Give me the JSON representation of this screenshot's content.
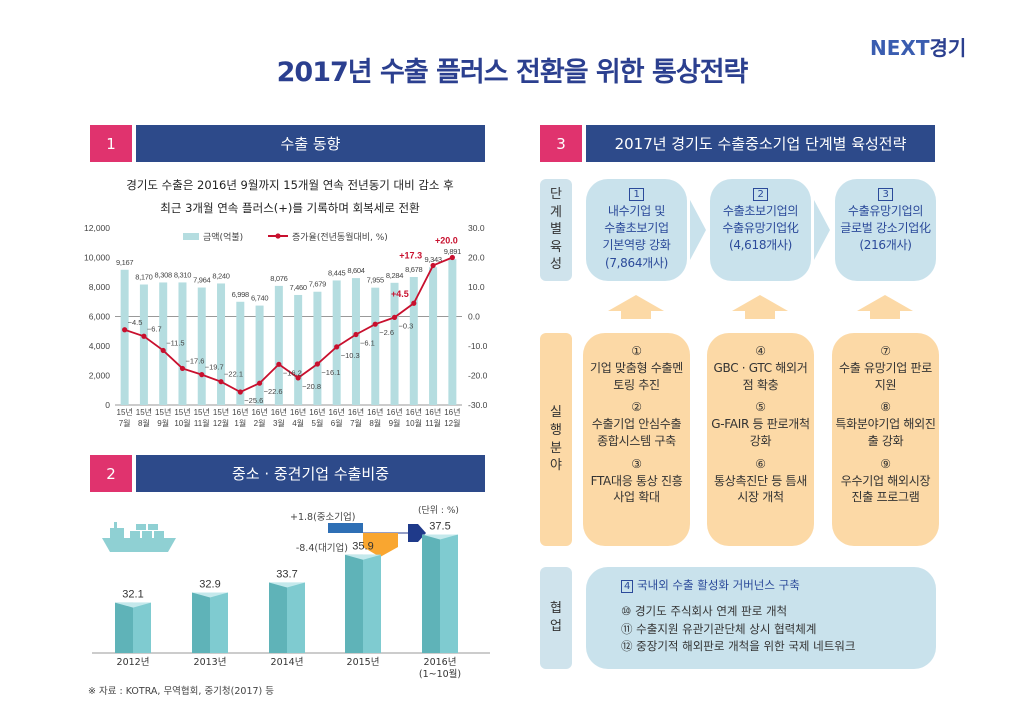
{
  "title": "2017년 수출 플러스 전환을 위한 통상전략",
  "logo": {
    "next": "NEXT",
    "gg": "경기"
  },
  "section1": {
    "num": "1",
    "title": "수출 동향",
    "sub1": "경기도 수출은 2016년 9월까지 15개월 연속 전년동기 대비 감소 후",
    "sub2": "최근 3개월 연속 플러스(+)를 기록하며 회복세로 전환"
  },
  "section2": {
    "num": "2",
    "title": "중소 · 중견기업 수출비중",
    "unit": "(단위 : %)",
    "sme_change": "+1.8(중소기업)",
    "large_change": "-8.4(대기업)",
    "source": "※ 자료 : KOTRA, 무역협회, 중기청(2017) 등"
  },
  "section3": {
    "num": "3",
    "title": "2017년 경기도 수출중소기업 단계별 육성전략",
    "label_stage": "단계별 육성",
    "label_exec": "실행분야",
    "label_coop": "협업",
    "stages": [
      {
        "num": "1",
        "lines": [
          "내수기업 및",
          "수출초보기업",
          "기본역량 강화",
          "(7,864개사)"
        ]
      },
      {
        "num": "2",
        "lines": [
          "수출초보기업의",
          "수출유망기업化",
          "(4,618개사)"
        ]
      },
      {
        "num": "3",
        "lines": [
          "수출유망기업의",
          "글로벌 강소기업化",
          "(216개사)"
        ]
      }
    ],
    "exec": [
      [
        {
          "n": "①",
          "t": "기업 맞춤형 수출멘토링 추진"
        },
        {
          "n": "②",
          "t": "수출기업 안심수출 종합시스템 구축"
        },
        {
          "n": "③",
          "t": "FTA대응 통상 진흥사업 확대"
        }
      ],
      [
        {
          "n": "④",
          "t": "GBC · GTC 해외거점 확충"
        },
        {
          "n": "⑤",
          "t": "G-FAIR 등 판로개척 강화"
        },
        {
          "n": "⑥",
          "t": "통상촉진단 등 틈새시장 개척"
        }
      ],
      [
        {
          "n": "⑦",
          "t": "수출 유망기업 판로지원"
        },
        {
          "n": "⑧",
          "t": "특화분야기업 해외진출 강화"
        },
        {
          "n": "⑨",
          "t": "우수기업 해외시장 진출 프로그램"
        }
      ]
    ],
    "coop": {
      "num": "4",
      "title": "국내외 수출 활성화 거버넌스 구축",
      "items": [
        "⑩ 경기도 주식회사 연계 판로 개척",
        "⑪ 수출지원 유관기관단체 상시 협력체계",
        "⑫ 중장기적 해외판로 개척을 위한 국제 네트워크"
      ]
    }
  },
  "chart_data": [
    {
      "type": "bar+line",
      "legend": [
        "금액(억불)",
        "증가율(전년동월대비, %)"
      ],
      "legend_position": "top",
      "categories": [
        "15년 7월",
        "15년 8월",
        "15년 9월",
        "15년 10월",
        "15년 11월",
        "15년 12월",
        "16년 1월",
        "16년 2월",
        "16년 3월",
        "16년 4월",
        "16년 5월",
        "16년 6월",
        "16년 7월",
        "16년 8월",
        "16년 9월",
        "16년 10월",
        "16년 11월",
        "16년 12월"
      ],
      "series": [
        {
          "name": "금액(억불)",
          "type": "bar",
          "axis": "left",
          "color": "#b5dde0",
          "values": [
            9167,
            8170,
            8308,
            8310,
            7964,
            8240,
            6998,
            6740,
            8076,
            7460,
            7679,
            8445,
            8604,
            7955,
            8284,
            8678,
            9343,
            9891
          ],
          "labels": [
            "9,167",
            "8,170",
            "8,308",
            "8,310",
            "7,964",
            "8,240",
            "6,998",
            "6,740",
            "8,076",
            "7,460",
            "7,679",
            "8,445",
            "8,604",
            "7,955",
            "8,284",
            "8,678",
            "9,343",
            "9,891"
          ]
        },
        {
          "name": "증가율(전년동월대비, %)",
          "type": "line",
          "axis": "right",
          "color": "#c8102e",
          "values": [
            -4.5,
            -6.7,
            -11.5,
            -17.6,
            -19.7,
            -22.1,
            -25.6,
            -22.6,
            -16.2,
            -20.8,
            -16.1,
            -10.3,
            -6.1,
            -2.6,
            -0.3,
            4.5,
            17.3,
            20.0
          ],
          "labels": [
            "−4.5",
            "−6.7",
            "−11.5",
            "−17.6",
            "−19.7",
            "−22.1",
            "−25.6",
            "−22.6",
            "−16.2",
            "−20.8",
            "−16.1",
            "−10.3",
            "−6.1",
            "−2.6",
            "−0.3",
            "+4.5",
            "+17.3",
            "+20.0"
          ]
        }
      ],
      "ylim_left": [
        0,
        12000
      ],
      "yticks_left": [
        "0",
        "2,000",
        "4,000",
        "6,000",
        "8,000",
        "10,000",
        "12,000"
      ],
      "ylim_right": [
        -30,
        30
      ],
      "yticks_right": [
        "-30.0",
        "-20.0",
        "-10.0",
        "0.0",
        "10.0",
        "20.0",
        "30.0"
      ]
    },
    {
      "type": "bar",
      "categories": [
        "2012년",
        "2013년",
        "2014년",
        "2015년",
        "2016년 (1~10월)"
      ],
      "values": [
        32.1,
        32.9,
        33.7,
        35.9,
        37.5
      ],
      "labels": [
        "32.1",
        "32.9",
        "33.7",
        "35.9",
        "37.5"
      ],
      "color": "#7fcbd0"
    }
  ]
}
